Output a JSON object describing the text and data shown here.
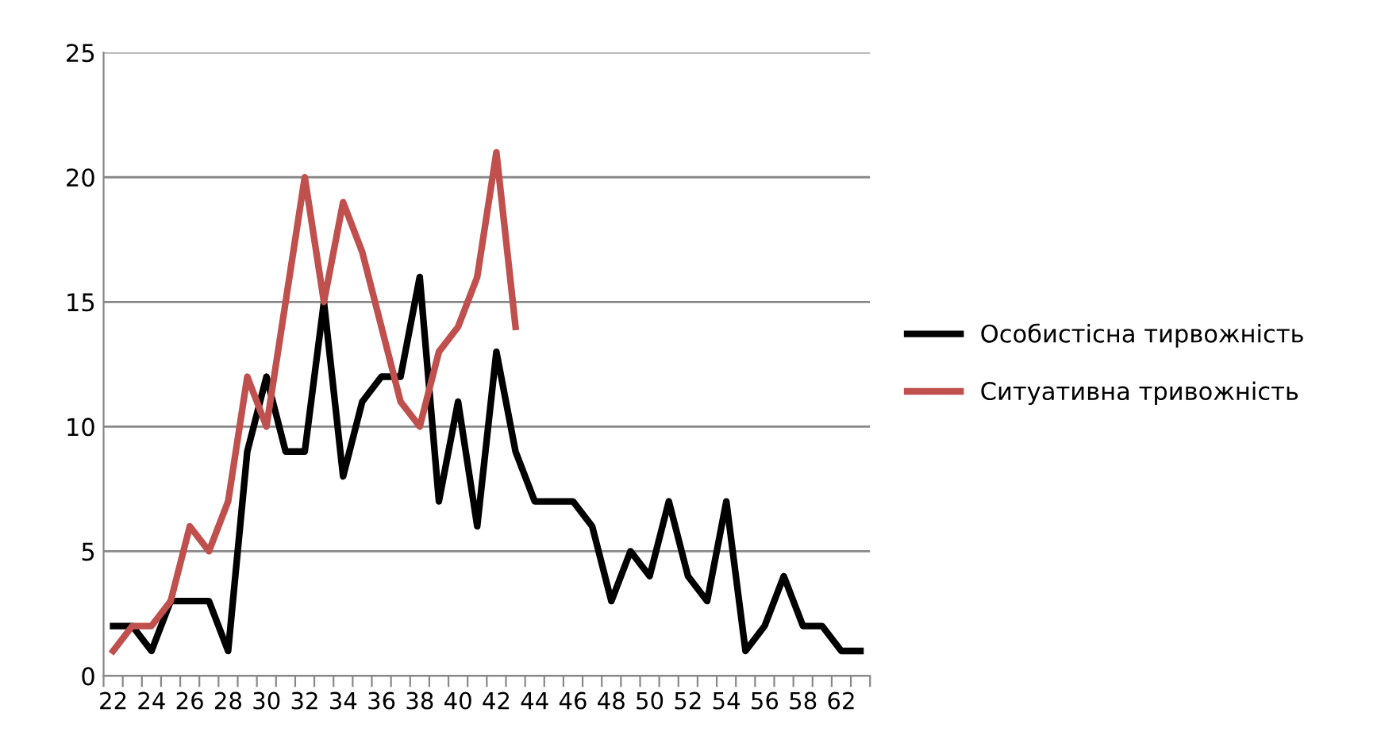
{
  "chart_data": {
    "type": "line",
    "categories": [
      "22",
      null,
      "24",
      null,
      "26",
      null,
      "28",
      null,
      "30",
      null,
      "32",
      null,
      "34",
      null,
      "36",
      null,
      "38",
      null,
      "40",
      null,
      "42",
      null,
      "44",
      null,
      "46",
      null,
      "48",
      null,
      "50",
      null,
      "52",
      null,
      "54",
      null,
      "56",
      null,
      "58",
      null,
      "62",
      null
    ],
    "series": [
      {
        "name": "Особистісна тирвожність",
        "color": "#000000",
        "values": [
          2,
          2,
          1,
          3,
          3,
          3,
          1,
          9,
          12,
          9,
          9,
          15,
          8,
          11,
          12,
          12,
          16,
          7,
          11,
          6,
          13,
          9,
          7,
          7,
          7,
          6,
          3,
          5,
          4,
          7,
          4,
          3,
          7,
          1,
          2,
          4,
          2,
          2,
          1,
          1
        ]
      },
      {
        "name": "Ситуативна тривожність",
        "color": "#c0504d",
        "values": [
          1,
          2,
          2,
          3,
          6,
          5,
          7,
          12,
          10,
          15,
          20,
          15,
          19,
          17,
          14,
          11,
          10,
          13,
          14,
          16,
          21,
          14,
          null,
          null,
          null,
          null,
          null,
          null,
          null,
          null,
          null,
          null,
          null,
          null,
          null,
          null,
          null,
          null,
          null,
          null
        ]
      }
    ],
    "ylim": [
      0,
      25
    ],
    "yticks": [
      0,
      5,
      10,
      15,
      20,
      25
    ],
    "grid": "y",
    "legend": "right",
    "marker": "none",
    "line_style": "solid"
  }
}
